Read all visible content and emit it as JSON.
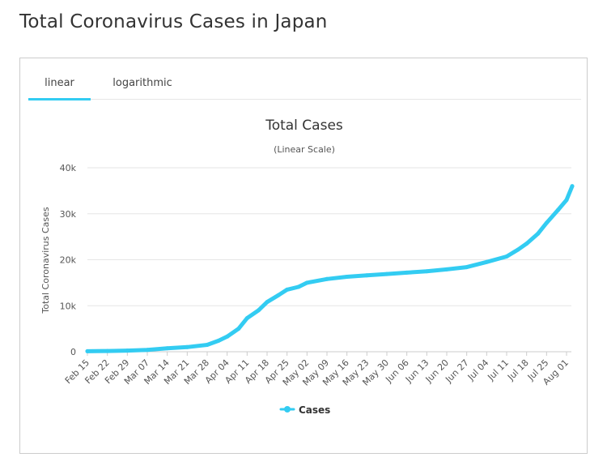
{
  "page": {
    "title": "Total Coronavirus Cases in Japan"
  },
  "tabs": [
    {
      "label": "linear",
      "active": true
    },
    {
      "label": "logarithmic",
      "active": false
    }
  ],
  "chart_data": {
    "type": "line",
    "title": "Total Cases",
    "subtitle": "(Linear Scale)",
    "ylabel": "Total Coronavirus Cases",
    "xlabel": "",
    "ylim": [
      0,
      40000
    ],
    "yticks": [
      0,
      10000,
      20000,
      30000,
      40000
    ],
    "ytick_labels": [
      "0",
      "10k",
      "20k",
      "30k",
      "40k"
    ],
    "xtick_labels": [
      "Feb 15",
      "Feb 22",
      "Feb 29",
      "Mar 07",
      "Mar 14",
      "Mar 21",
      "Mar 28",
      "Apr 04",
      "Apr 11",
      "Apr 18",
      "Apr 25",
      "May 02",
      "May 09",
      "May 16",
      "May 23",
      "May 30",
      "Jun 06",
      "Jun 13",
      "Jun 20",
      "Jun 27",
      "Jul 04",
      "Jul 11",
      "Jul 18",
      "Jul 25",
      "Aug 01"
    ],
    "grid": true,
    "legend_position": "bottom-center",
    "color": "#33ccf2",
    "series": [
      {
        "name": "Cases",
        "x": [
          "Feb 15",
          "Feb 22",
          "Feb 29",
          "Mar 07",
          "Mar 14",
          "Mar 21",
          "Mar 28",
          "Apr 01",
          "Apr 04",
          "Apr 08",
          "Apr 11",
          "Apr 15",
          "Apr 18",
          "Apr 22",
          "Apr 25",
          "Apr 29",
          "May 02",
          "May 09",
          "May 16",
          "May 23",
          "May 30",
          "Jun 06",
          "Jun 13",
          "Jun 20",
          "Jun 27",
          "Jul 04",
          "Jul 11",
          "Jul 15",
          "Jul 18",
          "Jul 22",
          "Jul 25",
          "Jul 29",
          "Aug 01",
          "Aug 03"
        ],
        "values": [
          100,
          150,
          250,
          400,
          750,
          1000,
          1500,
          2400,
          3300,
          5000,
          7300,
          9000,
          10800,
          12300,
          13500,
          14100,
          15000,
          15800,
          16300,
          16600,
          16900,
          17200,
          17500,
          17900,
          18400,
          19500,
          20700,
          22200,
          23500,
          25700,
          28000,
          30800,
          33000,
          36000
        ]
      }
    ]
  }
}
